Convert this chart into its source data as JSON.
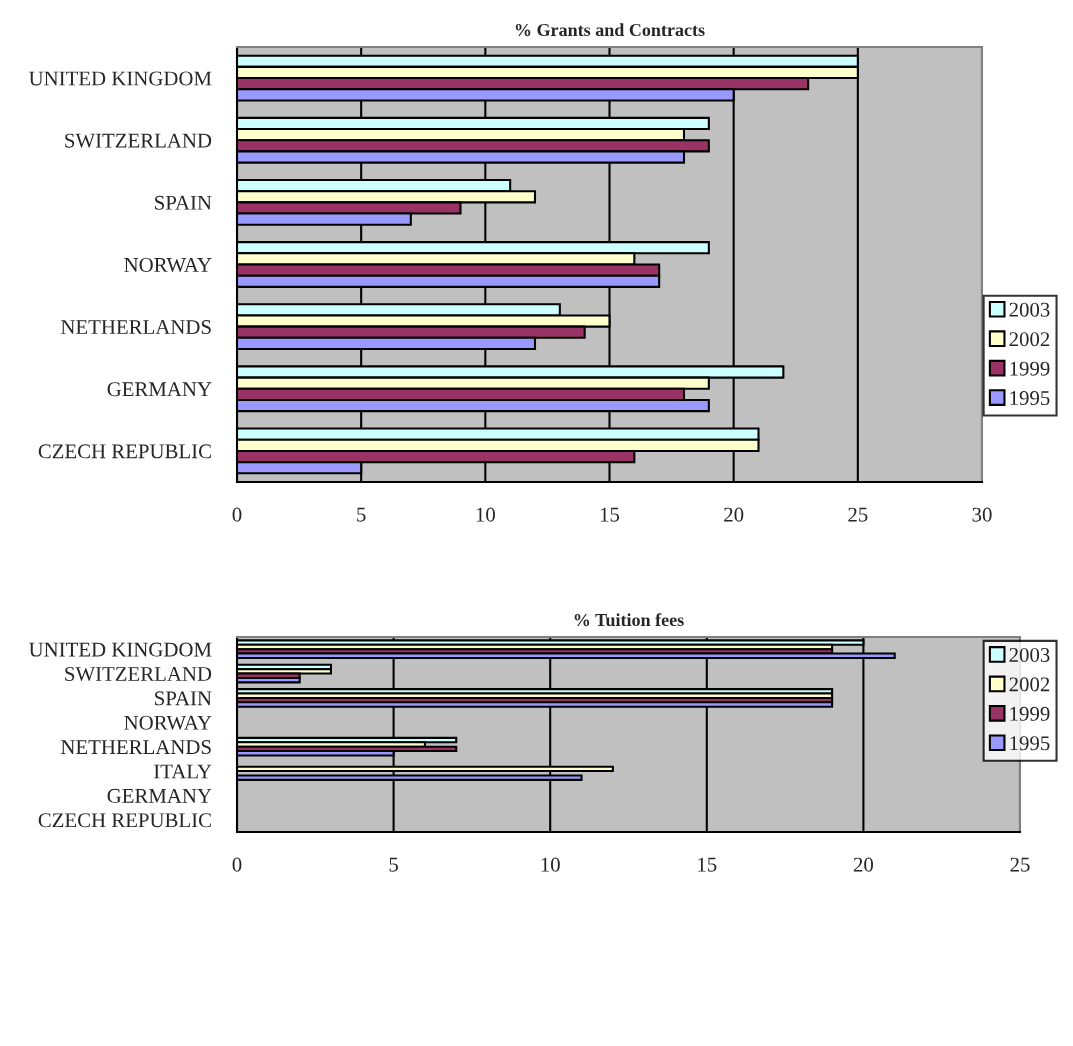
{
  "chart_data": [
    {
      "type": "bar",
      "orientation": "horizontal",
      "title": "% Grants and Contracts",
      "categories": [
        "UNITED KINGDOM",
        "SWITZERLAND",
        "SPAIN",
        "NORWAY",
        "NETHERLANDS",
        "GERMANY",
        "CZECH REPUBLIC"
      ],
      "series": [
        {
          "name": "2003",
          "color": "#ccffff",
          "values": [
            25,
            19,
            11,
            19,
            13,
            22,
            21
          ]
        },
        {
          "name": "2002",
          "color": "#ffffcc",
          "values": [
            25,
            18,
            12,
            16,
            15,
            19,
            21
          ]
        },
        {
          "name": "1999",
          "color": "#993366",
          "values": [
            23,
            19,
            9,
            17,
            14,
            18,
            16
          ]
        },
        {
          "name": "1995",
          "color": "#9999ff",
          "values": [
            20,
            18,
            7,
            17,
            12,
            19,
            5
          ]
        }
      ],
      "xlim": [
        0,
        30
      ],
      "xticks": [
        0,
        5,
        10,
        15,
        20,
        25,
        30
      ],
      "grid": "x",
      "legend": "right"
    },
    {
      "type": "bar",
      "orientation": "horizontal",
      "title": "% Tuition fees",
      "categories": [
        "UNITED KINGDOM",
        "SWITZERLAND",
        "SPAIN",
        "NORWAY",
        "NETHERLANDS",
        "ITALY",
        "GERMANY",
        "CZECH REPUBLIC"
      ],
      "series": [
        {
          "name": "2003",
          "color": "#ccffff",
          "values": [
            20,
            3,
            19,
            null,
            7,
            null,
            null,
            null
          ]
        },
        {
          "name": "2002",
          "color": "#ffffcc",
          "values": [
            19,
            3,
            19,
            null,
            6,
            12,
            null,
            null
          ]
        },
        {
          "name": "1999",
          "color": "#993366",
          "values": [
            19,
            2,
            19,
            null,
            7,
            null,
            null,
            null
          ]
        },
        {
          "name": "1995",
          "color": "#9999ff",
          "values": [
            21,
            2,
            19,
            null,
            5,
            11,
            null,
            null
          ]
        }
      ],
      "xlim": [
        0,
        25
      ],
      "xticks": [
        0,
        5,
        10,
        15,
        20,
        25
      ],
      "grid": "x",
      "legend": "right"
    }
  ]
}
